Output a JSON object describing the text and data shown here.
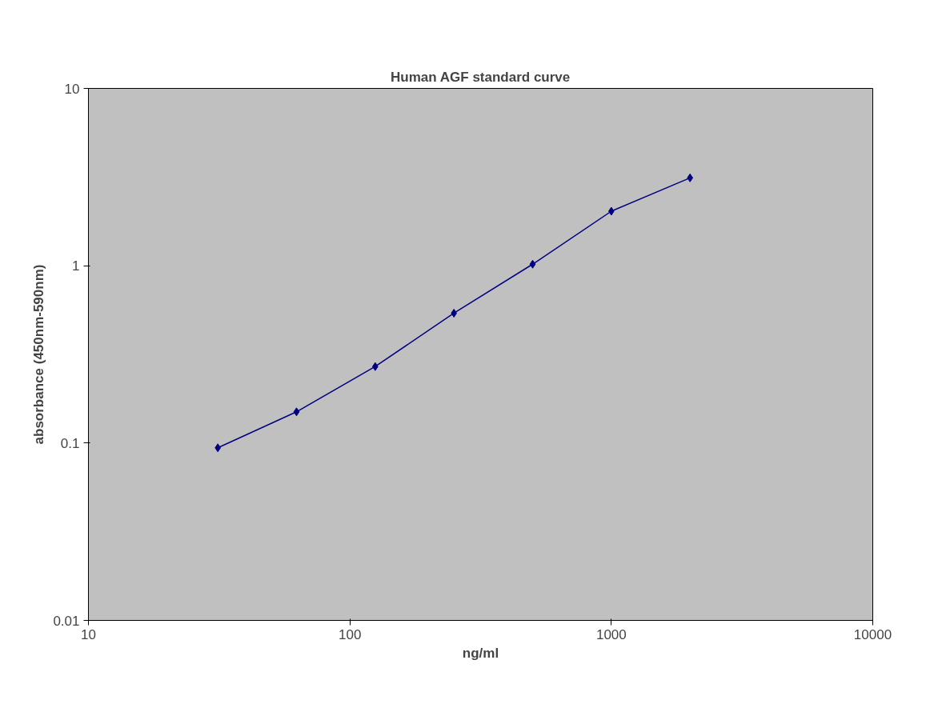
{
  "chart_data": {
    "type": "line",
    "title": "Human AGF standard curve",
    "xlabel": "ng/ml",
    "ylabel": "absorbance (450nm-590nm)",
    "x": [
      31.25,
      62.5,
      125,
      250,
      500,
      1000,
      2000
    ],
    "series": [
      {
        "color": "#000080",
        "values": [
          0.094,
          0.15,
          0.27,
          0.54,
          1.02,
          2.03,
          3.13
        ]
      }
    ],
    "log": "xy",
    "xlim": [
      10,
      10000
    ],
    "ylim": [
      0.01,
      10
    ],
    "xticks": [
      10,
      100,
      1000,
      10000
    ],
    "yticks": [
      0.01,
      0.1,
      1,
      10
    ],
    "grid": false,
    "marker": "diamond",
    "line_style": "solid"
  }
}
